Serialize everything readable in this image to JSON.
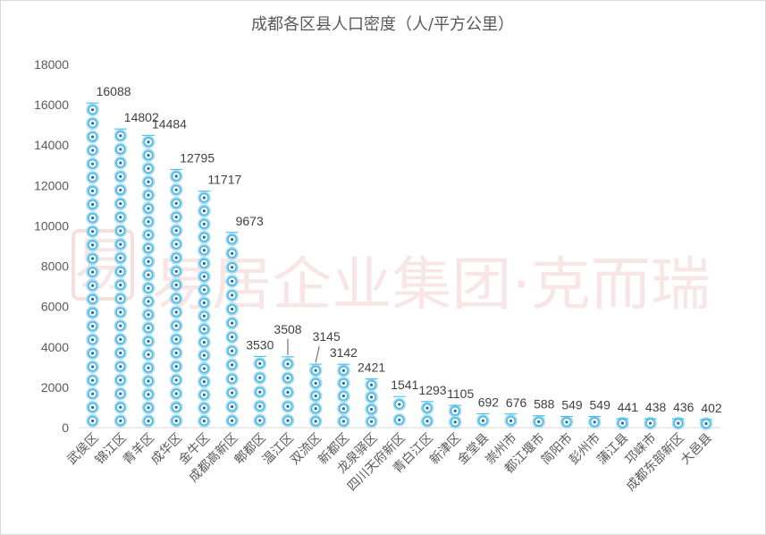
{
  "watermark": {
    "logo_char": "易",
    "text": "易居企业集团·克而瑞"
  },
  "chart_data": {
    "type": "bar",
    "title": "成都各区县人口密度（人/平方公里）",
    "xlabel": "",
    "ylabel": "",
    "ylim": [
      0,
      18000
    ],
    "yticks": [
      0,
      2000,
      4000,
      6000,
      8000,
      10000,
      12000,
      14000,
      16000,
      18000
    ],
    "grid": false,
    "legend": "none",
    "categories": [
      "武侯区",
      "锦江区",
      "青羊区",
      "成华区",
      "金牛区",
      "成都高新区",
      "郫都区",
      "温江区",
      "双流区",
      "新都区",
      "龙泉驿区",
      "四川天府新区",
      "青白江区",
      "新津区",
      "金堂县",
      "崇州市",
      "都江堰市",
      "简阳市",
      "彭州市",
      "蒲江县",
      "邛崃市",
      "成都东部新区",
      "大邑县"
    ],
    "values": [
      16088,
      14802,
      14484,
      12795,
      11717,
      9673,
      3530,
      3508,
      3145,
      3142,
      2421,
      1541,
      1293,
      1105,
      692,
      676,
      588,
      549,
      549,
      441,
      438,
      436,
      402
    ],
    "data_labels": [
      "16088",
      "14802",
      "14484",
      "12795",
      "11717",
      "9673",
      "3530",
      "3508",
      "3145",
      "3142",
      "2421",
      "1541",
      "1293",
      "1105",
      "692",
      "676",
      "588",
      "549",
      "549",
      "441",
      "438",
      "436",
      "402"
    ],
    "colors": {
      "mark_outer": "#9fd9ef",
      "mark_ring": "#3fb4e5",
      "mark_dot": "#1d6fa5",
      "axis": "#d9d9d9",
      "text": "#595959"
    }
  }
}
